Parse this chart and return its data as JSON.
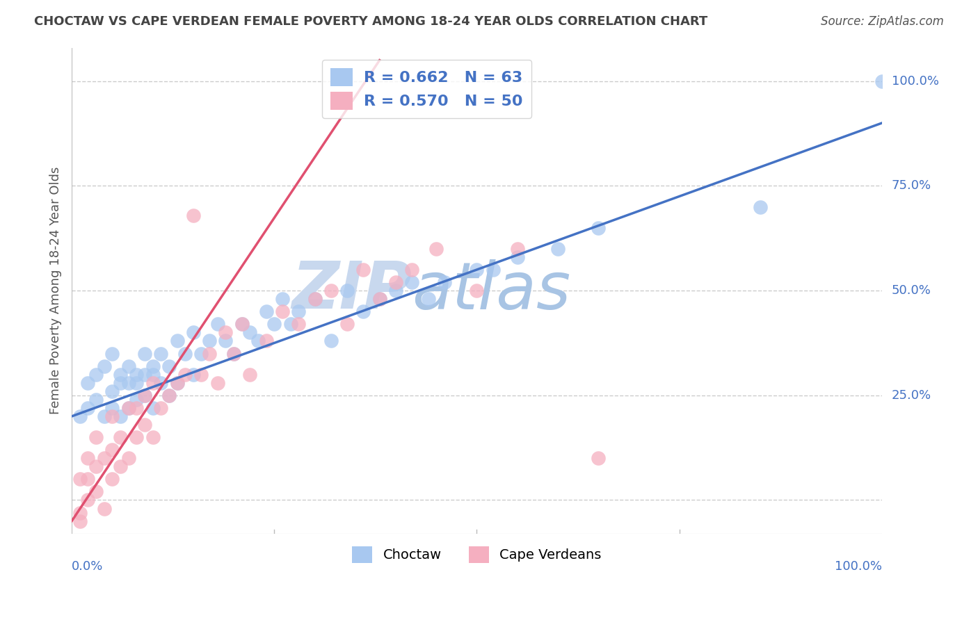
{
  "title": "CHOCTAW VS CAPE VERDEAN FEMALE POVERTY AMONG 18-24 YEAR OLDS CORRELATION CHART",
  "source": "Source: ZipAtlas.com",
  "ylabel": "Female Poverty Among 18-24 Year Olds",
  "xlim": [
    0,
    1
  ],
  "ylim": [
    -0.08,
    1.08
  ],
  "yticks": [
    0.0,
    0.25,
    0.5,
    0.75,
    1.0
  ],
  "ytick_labels": [
    "",
    "25.0%",
    "50.0%",
    "75.0%",
    "100.0%"
  ],
  "choctaw_color": "#a8c8f0",
  "cape_verdean_color": "#f5afc0",
  "choctaw_line_color": "#4472c4",
  "cape_verdean_line_color": "#e05070",
  "watermark_color": "#d8e8f8",
  "background_color": "#ffffff",
  "blue_line_x0": 0.0,
  "blue_line_y0": 0.2,
  "blue_line_x1": 1.0,
  "blue_line_y1": 0.9,
  "pink_line_x0": 0.0,
  "pink_line_y0": -0.05,
  "pink_line_x1": 0.38,
  "pink_line_y1": 1.05,
  "choctaw_x": [
    0.01,
    0.02,
    0.02,
    0.03,
    0.03,
    0.04,
    0.04,
    0.05,
    0.05,
    0.05,
    0.06,
    0.06,
    0.06,
    0.07,
    0.07,
    0.07,
    0.08,
    0.08,
    0.08,
    0.09,
    0.09,
    0.09,
    0.1,
    0.1,
    0.1,
    0.11,
    0.11,
    0.12,
    0.12,
    0.13,
    0.13,
    0.14,
    0.15,
    0.15,
    0.16,
    0.17,
    0.18,
    0.19,
    0.2,
    0.21,
    0.22,
    0.23,
    0.24,
    0.25,
    0.26,
    0.27,
    0.28,
    0.3,
    0.32,
    0.34,
    0.36,
    0.38,
    0.4,
    0.42,
    0.44,
    0.46,
    0.5,
    0.52,
    0.55,
    0.6,
    0.65,
    0.85,
    1.0
  ],
  "choctaw_y": [
    0.2,
    0.22,
    0.28,
    0.24,
    0.3,
    0.2,
    0.32,
    0.22,
    0.26,
    0.35,
    0.2,
    0.28,
    0.3,
    0.22,
    0.28,
    0.32,
    0.24,
    0.3,
    0.28,
    0.25,
    0.3,
    0.35,
    0.22,
    0.3,
    0.32,
    0.28,
    0.35,
    0.25,
    0.32,
    0.28,
    0.38,
    0.35,
    0.3,
    0.4,
    0.35,
    0.38,
    0.42,
    0.38,
    0.35,
    0.42,
    0.4,
    0.38,
    0.45,
    0.42,
    0.48,
    0.42,
    0.45,
    0.48,
    0.38,
    0.5,
    0.45,
    0.48,
    0.5,
    0.52,
    0.48,
    0.52,
    0.55,
    0.55,
    0.58,
    0.6,
    0.65,
    0.7,
    1.0
  ],
  "cape_verdean_x": [
    0.01,
    0.01,
    0.01,
    0.02,
    0.02,
    0.02,
    0.03,
    0.03,
    0.03,
    0.04,
    0.04,
    0.05,
    0.05,
    0.05,
    0.06,
    0.06,
    0.07,
    0.07,
    0.08,
    0.08,
    0.09,
    0.09,
    0.1,
    0.1,
    0.11,
    0.12,
    0.13,
    0.14,
    0.15,
    0.16,
    0.17,
    0.18,
    0.19,
    0.2,
    0.21,
    0.22,
    0.24,
    0.26,
    0.28,
    0.3,
    0.32,
    0.34,
    0.36,
    0.38,
    0.4,
    0.42,
    0.45,
    0.5,
    0.55,
    0.65
  ],
  "cape_verdean_y": [
    -0.05,
    -0.03,
    0.05,
    0.0,
    0.05,
    0.1,
    0.02,
    0.08,
    0.15,
    -0.02,
    0.1,
    0.05,
    0.12,
    0.2,
    0.08,
    0.15,
    0.1,
    0.22,
    0.15,
    0.22,
    0.18,
    0.25,
    0.15,
    0.28,
    0.22,
    0.25,
    0.28,
    0.3,
    0.68,
    0.3,
    0.35,
    0.28,
    0.4,
    0.35,
    0.42,
    0.3,
    0.38,
    0.45,
    0.42,
    0.48,
    0.5,
    0.42,
    0.55,
    0.48,
    0.52,
    0.55,
    0.6,
    0.5,
    0.6,
    0.1
  ]
}
